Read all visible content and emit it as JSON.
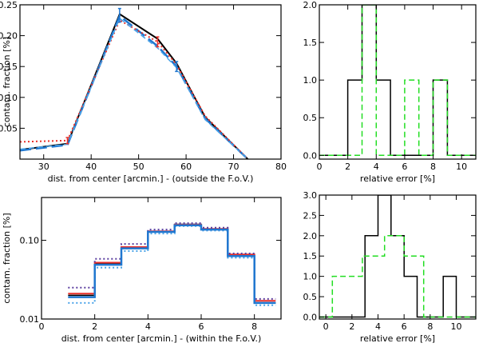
{
  "chart_data": [
    {
      "id": "top-left",
      "type": "line",
      "xlabel": "dist. from center [arcmin.] - (outside the F.o.V.)",
      "ylabel": "contam. fraction [%]",
      "xlim": [
        25,
        80
      ],
      "ylim": [
        0.0,
        0.25
      ],
      "xscale": "linear",
      "yscale": "linear",
      "xticks": [
        30,
        40,
        50,
        60,
        70,
        80
      ],
      "yticks": [
        0.05,
        0.1,
        0.15,
        0.2,
        0.25
      ],
      "xtick_labels": [
        "30",
        "40",
        "50",
        "60",
        "70",
        "80"
      ],
      "ytick_labels": [
        "0.05",
        "0.10",
        "0.15",
        "0.20",
        "0.25"
      ],
      "series": [
        {
          "name": "black solid",
          "color": "#000000",
          "style": "solid",
          "width": 2,
          "step": false,
          "x": [
            25,
            35,
            46,
            54,
            58,
            64,
            73
          ],
          "y": [
            0.015,
            0.025,
            0.235,
            0.195,
            0.155,
            0.068,
            0.0
          ]
        },
        {
          "name": "blue long-dash",
          "color": "#1f77d0",
          "style": "longdash",
          "width": 2.5,
          "step": false,
          "x": [
            25,
            35,
            46,
            54,
            58,
            64,
            73
          ],
          "y": [
            0.014,
            0.023,
            0.232,
            0.183,
            0.15,
            0.066,
            0.0
          ]
        },
        {
          "name": "red dotted",
          "color": "#e8302a",
          "style": "dotted",
          "width": 2,
          "step": false,
          "x": [
            25,
            35,
            46,
            54,
            58,
            64,
            73
          ],
          "y": [
            0.028,
            0.03,
            0.225,
            0.19,
            0.153,
            0.07,
            0.0
          ]
        },
        {
          "name": "blue short-dash",
          "color": "#4aa3e8",
          "style": "dash",
          "width": 1.5,
          "step": false,
          "x": [
            25,
            35,
            46,
            54,
            58,
            64,
            73
          ],
          "y": [
            0.016,
            0.024,
            0.228,
            0.18,
            0.148,
            0.064,
            0.0
          ]
        }
      ],
      "error_bars": [
        {
          "x": 46,
          "y": 0.232,
          "low": 0.222,
          "high": 0.244,
          "color": "#1f77d0"
        },
        {
          "x": 54,
          "y": 0.19,
          "low": 0.182,
          "high": 0.198,
          "color": "#e8302a"
        },
        {
          "x": 58,
          "y": 0.15,
          "low": 0.142,
          "high": 0.158,
          "color": "#1f77d0"
        },
        {
          "x": 35,
          "y": 0.03,
          "low": 0.025,
          "high": 0.035,
          "color": "#e8302a"
        }
      ]
    },
    {
      "id": "top-right",
      "type": "histogram",
      "xlabel": "relative error [%]",
      "ylabel": "",
      "xlim": [
        0,
        11
      ],
      "ylim": [
        -0.05,
        2.0
      ],
      "xscale": "linear",
      "yscale": "linear",
      "xticks": [
        0,
        2,
        4,
        6,
        8,
        10
      ],
      "yticks": [
        0.0,
        0.5,
        1.0,
        1.5,
        2.0
      ],
      "xtick_labels": [
        "0",
        "2",
        "4",
        "6",
        "8",
        "10"
      ],
      "ytick_labels": [
        "0.0",
        "0.5",
        "1.0",
        "1.5",
        "2.0"
      ],
      "series": [
        {
          "name": "black solid",
          "color": "#000000",
          "style": "solid",
          "width": 1.5,
          "step": true,
          "x": [
            0,
            2,
            3,
            4,
            5,
            8,
            9,
            11
          ],
          "y": [
            0,
            1,
            2,
            1,
            0,
            1,
            0,
            0
          ]
        },
        {
          "name": "green dashed",
          "color": "#22dd22",
          "style": "dash",
          "width": 1.5,
          "step": true,
          "x": [
            0,
            3,
            4,
            6,
            7,
            8,
            9,
            11
          ],
          "y": [
            0,
            2,
            0,
            1,
            0,
            1,
            0,
            0
          ]
        }
      ],
      "error_bars": []
    },
    {
      "id": "bottom-left",
      "type": "line",
      "xlabel": "dist. from center [arcmin.] - (within the F.o.V.)",
      "ylabel": "contam. fraction [%]",
      "xlim": [
        0,
        9
      ],
      "ylim": [
        0.01,
        0.35
      ],
      "xscale": "linear",
      "yscale": "log",
      "xticks": [
        0,
        2,
        4,
        6,
        8
      ],
      "yticks": [
        0.01,
        0.1
      ],
      "xtick_labels": [
        "0",
        "2",
        "4",
        "6",
        "8"
      ],
      "ytick_labels": [
        "0.01",
        "0.10"
      ],
      "series": [
        {
          "name": "black solid",
          "color": "#000000",
          "style": "solid",
          "width": 1.5,
          "step": true,
          "x": [
            1,
            2,
            3,
            4,
            5,
            6,
            7,
            8,
            8.8
          ],
          "y": [
            0.02,
            0.05,
            0.08,
            0.13,
            0.16,
            0.14,
            0.065,
            0.016,
            0.016
          ]
        },
        {
          "name": "red solid",
          "color": "#e8302a",
          "style": "solid",
          "width": 2,
          "step": true,
          "x": [
            1,
            2,
            3,
            4,
            5,
            6,
            7,
            8,
            8.8
          ],
          "y": [
            0.021,
            0.052,
            0.082,
            0.13,
            0.158,
            0.14,
            0.066,
            0.017,
            0.017
          ]
        },
        {
          "name": "purple dotted upper",
          "color": "#5b3fa0",
          "style": "dotted",
          "width": 2,
          "step": true,
          "x": [
            1,
            2,
            3,
            4,
            5,
            6,
            7,
            8,
            8.8
          ],
          "y": [
            0.025,
            0.058,
            0.09,
            0.137,
            0.165,
            0.145,
            0.068,
            0.018,
            0.018
          ]
        },
        {
          "name": "blue dotted lower",
          "color": "#4aa3e8",
          "style": "dotted",
          "width": 2,
          "step": true,
          "x": [
            1,
            2,
            3,
            4,
            5,
            6,
            7,
            8,
            8.8
          ],
          "y": [
            0.016,
            0.045,
            0.073,
            0.122,
            0.152,
            0.133,
            0.06,
            0.015,
            0.015
          ]
        },
        {
          "name": "blue solid",
          "color": "#1f77d0",
          "style": "solid",
          "width": 2.5,
          "step": true,
          "x": [
            1,
            2,
            3,
            4,
            5,
            6,
            7,
            8,
            8.8
          ],
          "y": [
            0.019,
            0.049,
            0.079,
            0.128,
            0.155,
            0.137,
            0.063,
            0.016,
            0.016
          ]
        }
      ],
      "error_bars": []
    },
    {
      "id": "bottom-right",
      "type": "histogram",
      "xlabel": "relative error [%]",
      "ylabel": "",
      "xlim": [
        -0.5,
        11.5
      ],
      "ylim": [
        -0.05,
        3.0
      ],
      "xscale": "linear",
      "yscale": "linear",
      "xticks": [
        0,
        2,
        4,
        6,
        8,
        10
      ],
      "yticks": [
        0.0,
        0.5,
        1.0,
        1.5,
        2.0,
        2.5,
        3.0
      ],
      "xtick_labels": [
        "0",
        "2",
        "4",
        "6",
        "8",
        "10"
      ],
      "ytick_labels": [
        "0.0",
        "0.5",
        "1.0",
        "1.5",
        "2.0",
        "2.5",
        "3.0"
      ],
      "series": [
        {
          "name": "black solid",
          "color": "#000000",
          "style": "solid",
          "width": 1.5,
          "step": true,
          "x": [
            -0.5,
            3,
            4,
            5,
            6,
            7,
            9,
            10,
            11.5
          ],
          "y": [
            0,
            2,
            3,
            2,
            1,
            0,
            1,
            0,
            0
          ]
        },
        {
          "name": "green dashed",
          "color": "#22dd22",
          "style": "dash",
          "width": 1.5,
          "step": true,
          "x": [
            -0.5,
            0.5,
            2.8,
            4.5,
            6,
            7.5,
            11.5
          ],
          "y": [
            0,
            1,
            1.5,
            2,
            1.5,
            0,
            0
          ]
        }
      ],
      "error_bars": []
    }
  ]
}
